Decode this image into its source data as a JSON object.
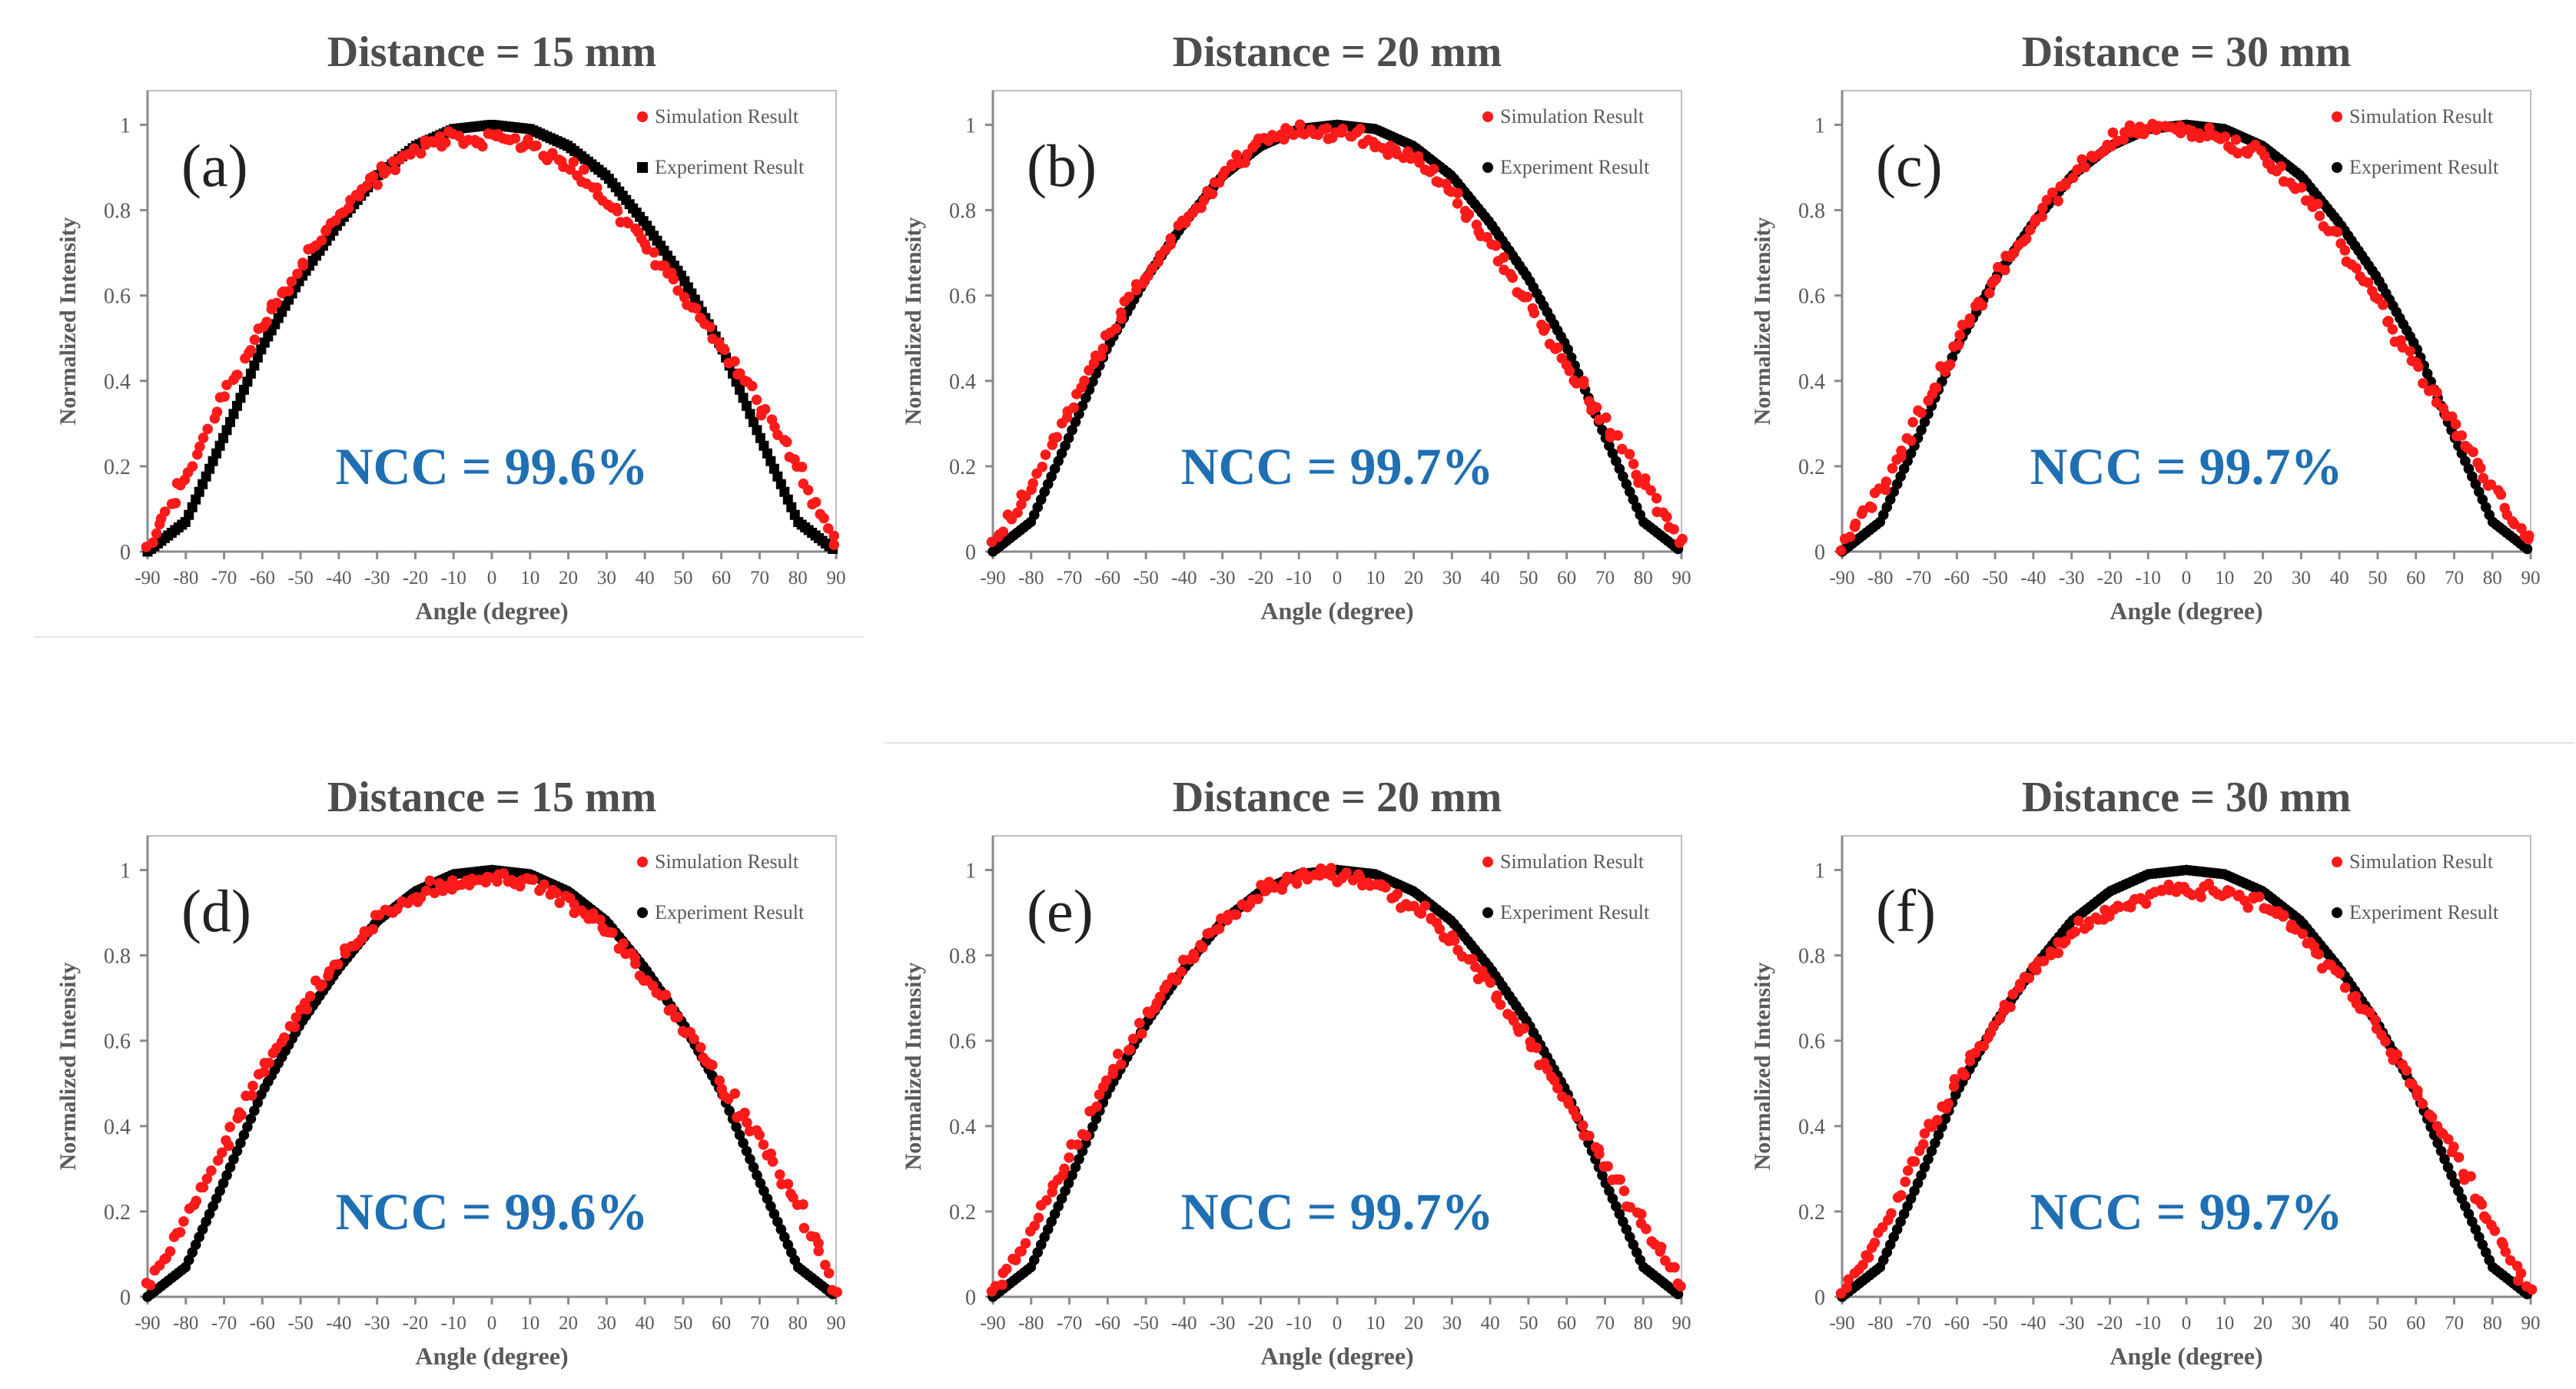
{
  "figure": {
    "panels": [
      {
        "tag": "(a)",
        "distance_title": "Distance = 15 mm",
        "ncc_label": "NCC = 99.6%",
        "experiment_marker": "square",
        "sim_seed": 11,
        "sim_bias": 0.03
      },
      {
        "tag": "(b)",
        "distance_title": "Distance = 20 mm",
        "ncc_label": "NCC = 99.7%",
        "experiment_marker": "circle",
        "sim_seed": 23,
        "sim_bias": 0.024
      },
      {
        "tag": "(c)",
        "distance_title": "Distance = 30 mm",
        "ncc_label": "NCC = 99.7%",
        "experiment_marker": "circle",
        "sim_seed": 37,
        "sim_bias": 0.022
      },
      {
        "tag": "(d)",
        "distance_title": "Distance = 15 mm",
        "ncc_label": "NCC = 99.6%",
        "experiment_marker": "circle",
        "sim_seed": 41,
        "sim_bias": 0.03
      },
      {
        "tag": "(e)",
        "distance_title": "Distance = 20 mm",
        "ncc_label": "NCC = 99.7%",
        "experiment_marker": "circle",
        "sim_seed": 53,
        "sim_bias": 0.024
      },
      {
        "tag": "(f)",
        "distance_title": "Distance = 30 mm",
        "ncc_label": "NCC = 99.7%",
        "experiment_marker": "circle",
        "sim_seed": 67,
        "sim_bias": 0.022
      }
    ]
  },
  "colors": {
    "simulation": "#ff1a1a",
    "experiment": "#000000",
    "title": "#4d4d4d",
    "axis_text": "#5a5a5a",
    "ncc": "#1f6fb3",
    "frame": "#bdbdbd"
  },
  "chart_data": [
    {
      "type": "scatter",
      "title": "Distance = 15 mm",
      "annotation": "NCC = 99.6%",
      "xlabel": "Angle (degree)",
      "ylabel": "Normalized Intensity",
      "xlim": [
        -90,
        90
      ],
      "ylim": [
        0,
        1.08
      ],
      "xticks": [
        -90,
        -80,
        -70,
        -60,
        -50,
        -40,
        -30,
        -20,
        -10,
        0,
        10,
        20,
        30,
        40,
        50,
        60,
        70,
        80,
        90
      ],
      "yticks": [
        0,
        0.2,
        0.4,
        0.6,
        0.8,
        1
      ],
      "legend": "top-right",
      "series": [
        {
          "name": "Simulation Result",
          "x": [
            -90,
            -80,
            -70,
            -60,
            -50,
            -40,
            -30,
            -20,
            -10,
            0,
            10,
            20,
            30,
            40,
            50,
            60,
            70,
            80,
            90
          ],
          "y": [
            0.02,
            0.17,
            0.37,
            0.53,
            0.67,
            0.79,
            0.88,
            0.94,
            0.97,
            0.97,
            0.95,
            0.9,
            0.82,
            0.72,
            0.6,
            0.48,
            0.35,
            0.2,
            0.02
          ]
        },
        {
          "name": "Experiment Result",
          "x": [
            -90,
            -80,
            -70,
            -60,
            -50,
            -40,
            -30,
            -20,
            -10,
            0,
            10,
            20,
            30,
            40,
            50,
            60,
            70,
            80,
            90
          ],
          "y": [
            0,
            0.07,
            0.27,
            0.48,
            0.64,
            0.77,
            0.88,
            0.95,
            0.99,
            1.0,
            0.99,
            0.95,
            0.88,
            0.77,
            0.64,
            0.48,
            0.27,
            0.07,
            0
          ]
        }
      ]
    },
    {
      "type": "scatter",
      "title": "Distance = 20 mm",
      "annotation": "NCC = 99.7%",
      "xlabel": "Angle (degree)",
      "ylabel": "Normalized Intensity",
      "xlim": [
        -90,
        90
      ],
      "ylim": [
        0,
        1.08
      ],
      "xticks": [
        -90,
        -80,
        -70,
        -60,
        -50,
        -40,
        -30,
        -20,
        -10,
        0,
        10,
        20,
        30,
        40,
        50,
        60,
        70,
        80,
        90
      ],
      "yticks": [
        0,
        0.2,
        0.4,
        0.6,
        0.8,
        1
      ],
      "legend": "top-right",
      "series": [
        {
          "name": "Simulation Result",
          "x": [
            -90,
            -80,
            -70,
            -60,
            -50,
            -40,
            -30,
            -20,
            -10,
            0,
            10,
            20,
            30,
            40,
            50,
            60,
            70,
            80,
            90
          ],
          "y": [
            0.02,
            0.15,
            0.33,
            0.5,
            0.65,
            0.78,
            0.88,
            0.96,
            0.99,
            0.98,
            0.96,
            0.92,
            0.84,
            0.72,
            0.58,
            0.44,
            0.3,
            0.16,
            0.02
          ]
        },
        {
          "name": "Experiment Result",
          "x": [
            -90,
            -80,
            -70,
            -60,
            -50,
            -40,
            -30,
            -20,
            -10,
            0,
            10,
            20,
            30,
            40,
            50,
            60,
            70,
            80,
            90
          ],
          "y": [
            0,
            0.07,
            0.27,
            0.48,
            0.64,
            0.77,
            0.88,
            0.95,
            0.99,
            1.0,
            0.99,
            0.95,
            0.88,
            0.77,
            0.64,
            0.48,
            0.27,
            0.07,
            0
          ]
        }
      ]
    },
    {
      "type": "scatter",
      "title": "Distance = 30 mm",
      "annotation": "NCC = 99.7%",
      "xlabel": "Angle (degree)",
      "ylabel": "Normalized Intensity",
      "xlim": [
        -90,
        90
      ],
      "ylim": [
        0,
        1.08
      ],
      "xticks": [
        -90,
        -80,
        -70,
        -60,
        -50,
        -40,
        -30,
        -20,
        -10,
        0,
        10,
        20,
        30,
        40,
        50,
        60,
        70,
        80,
        90
      ],
      "yticks": [
        0,
        0.2,
        0.4,
        0.6,
        0.8,
        1
      ],
      "legend": "top-right",
      "series": [
        {
          "name": "Simulation Result",
          "x": [
            -90,
            -80,
            -70,
            -60,
            -50,
            -40,
            -30,
            -20,
            -10,
            0,
            10,
            20,
            30,
            40,
            50,
            60,
            70,
            80,
            90
          ],
          "y": [
            0.02,
            0.14,
            0.31,
            0.49,
            0.64,
            0.77,
            0.88,
            0.96,
            0.99,
            0.99,
            0.97,
            0.93,
            0.84,
            0.72,
            0.58,
            0.44,
            0.29,
            0.15,
            0.02
          ]
        },
        {
          "name": "Experiment Result",
          "x": [
            -90,
            -80,
            -70,
            -60,
            -50,
            -40,
            -30,
            -20,
            -10,
            0,
            10,
            20,
            30,
            40,
            50,
            60,
            70,
            80,
            90
          ],
          "y": [
            0,
            0.07,
            0.27,
            0.48,
            0.64,
            0.77,
            0.88,
            0.95,
            0.99,
            1.0,
            0.99,
            0.95,
            0.88,
            0.77,
            0.64,
            0.48,
            0.27,
            0.07,
            0
          ]
        }
      ]
    },
    {
      "type": "scatter",
      "title": "Distance = 15 mm",
      "annotation": "NCC = 99.6%",
      "xlabel": "Angle (degree)",
      "ylabel": "Normalized Intensity",
      "xlim": [
        -90,
        90
      ],
      "ylim": [
        0,
        1.08
      ],
      "xticks": [
        -90,
        -80,
        -70,
        -60,
        -50,
        -40,
        -30,
        -20,
        -10,
        0,
        10,
        20,
        30,
        40,
        50,
        60,
        70,
        80,
        90
      ],
      "yticks": [
        0,
        0.2,
        0.4,
        0.6,
        0.8,
        1
      ],
      "legend": "top-right",
      "series": [
        {
          "name": "Simulation Result",
          "x": [
            -90,
            -80,
            -70,
            -60,
            -50,
            -40,
            -30,
            -20,
            -10,
            0,
            10,
            20,
            30,
            40,
            50,
            60,
            70,
            80,
            90
          ],
          "y": [
            0.02,
            0.17,
            0.36,
            0.53,
            0.67,
            0.79,
            0.88,
            0.94,
            0.97,
            0.98,
            0.97,
            0.93,
            0.86,
            0.75,
            0.63,
            0.5,
            0.37,
            0.21,
            0.02
          ]
        },
        {
          "name": "Experiment Result",
          "x": [
            -90,
            -80,
            -70,
            -60,
            -50,
            -40,
            -30,
            -20,
            -10,
            0,
            10,
            20,
            30,
            40,
            50,
            60,
            70,
            80,
            90
          ],
          "y": [
            0,
            0.07,
            0.27,
            0.48,
            0.64,
            0.77,
            0.88,
            0.95,
            0.99,
            1.0,
            0.99,
            0.95,
            0.88,
            0.77,
            0.64,
            0.48,
            0.27,
            0.07,
            0
          ]
        }
      ]
    },
    {
      "type": "scatter",
      "title": "Distance = 20 mm",
      "annotation": "NCC = 99.7%",
      "xlabel": "Angle (degree)",
      "ylabel": "Normalized Intensity",
      "xlim": [
        -90,
        90
      ],
      "ylim": [
        0,
        1.08
      ],
      "xticks": [
        -90,
        -80,
        -70,
        -60,
        -50,
        -40,
        -30,
        -20,
        -10,
        0,
        10,
        20,
        30,
        40,
        50,
        60,
        70,
        80,
        90
      ],
      "yticks": [
        0,
        0.2,
        0.4,
        0.6,
        0.8,
        1
      ],
      "legend": "top-right",
      "series": [
        {
          "name": "Simulation Result",
          "x": [
            -90,
            -80,
            -70,
            -60,
            -50,
            -40,
            -30,
            -20,
            -10,
            0,
            10,
            20,
            30,
            40,
            50,
            60,
            70,
            80,
            90
          ],
          "y": [
            0.02,
            0.15,
            0.33,
            0.5,
            0.65,
            0.78,
            0.88,
            0.95,
            0.98,
            0.99,
            0.97,
            0.92,
            0.84,
            0.73,
            0.6,
            0.46,
            0.31,
            0.17,
            0.02
          ]
        },
        {
          "name": "Experiment Result",
          "x": [
            -90,
            -80,
            -70,
            -60,
            -50,
            -40,
            -30,
            -20,
            -10,
            0,
            10,
            20,
            30,
            40,
            50,
            60,
            70,
            80,
            90
          ],
          "y": [
            0,
            0.07,
            0.27,
            0.48,
            0.64,
            0.77,
            0.88,
            0.95,
            0.99,
            1.0,
            0.99,
            0.95,
            0.88,
            0.77,
            0.64,
            0.48,
            0.27,
            0.07,
            0
          ]
        }
      ]
    },
    {
      "type": "scatter",
      "title": "Distance = 30 mm",
      "annotation": "NCC = 99.7%",
      "xlabel": "Angle (degree)",
      "ylabel": "Normalized Intensity",
      "xlim": [
        -90,
        90
      ],
      "ylim": [
        0,
        1.08
      ],
      "xticks": [
        -90,
        -80,
        -70,
        -60,
        -50,
        -40,
        -30,
        -20,
        -10,
        0,
        10,
        20,
        30,
        40,
        50,
        60,
        70,
        80,
        90
      ],
      "yticks": [
        0,
        0.2,
        0.4,
        0.6,
        0.8,
        1
      ],
      "legend": "top-right",
      "series": [
        {
          "name": "Simulation Result",
          "x": [
            -90,
            -80,
            -70,
            -60,
            -50,
            -40,
            -30,
            -20,
            -10,
            0,
            10,
            20,
            30,
            40,
            50,
            60,
            70,
            80,
            90
          ],
          "y": [
            0.02,
            0.15,
            0.34,
            0.5,
            0.64,
            0.76,
            0.85,
            0.91,
            0.94,
            0.96,
            0.95,
            0.92,
            0.85,
            0.75,
            0.62,
            0.48,
            0.33,
            0.17,
            0.02
          ]
        },
        {
          "name": "Experiment Result",
          "x": [
            -90,
            -80,
            -70,
            -60,
            -50,
            -40,
            -30,
            -20,
            -10,
            0,
            10,
            20,
            30,
            40,
            50,
            60,
            70,
            80,
            90
          ],
          "y": [
            0,
            0.07,
            0.27,
            0.48,
            0.64,
            0.77,
            0.88,
            0.95,
            0.99,
            1.0,
            0.99,
            0.95,
            0.88,
            0.77,
            0.64,
            0.48,
            0.27,
            0.07,
            0
          ]
        }
      ]
    }
  ]
}
